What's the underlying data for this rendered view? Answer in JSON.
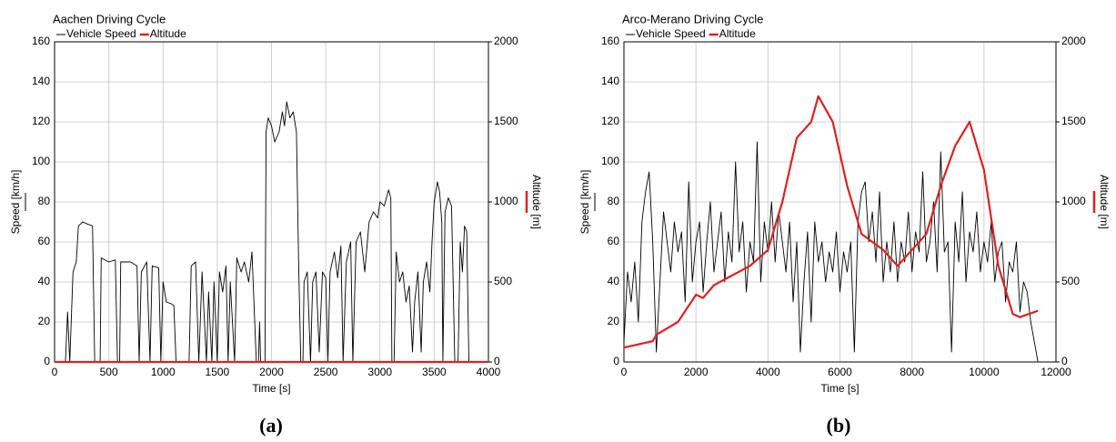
{
  "chart_data": [
    {
      "type": "line",
      "title": "Aachen Driving Cycle",
      "caption": "(a)",
      "xlabel": "Time [s]",
      "ylabel": "Speed [km/h]",
      "y2label": "Altitude [m]",
      "xlim": [
        0,
        4000
      ],
      "xticks": [
        0,
        500,
        1000,
        1500,
        2000,
        2500,
        3000,
        3500,
        4000
      ],
      "ylim": [
        0,
        160
      ],
      "yticks": [
        0,
        20,
        40,
        60,
        80,
        100,
        120,
        140,
        160
      ],
      "y2lim": [
        0,
        2000
      ],
      "y2ticks": [
        0,
        500,
        1000,
        1500,
        2000
      ],
      "grid": true,
      "series": [
        {
          "name": "Vehicle Speed",
          "color": "#000000",
          "x": [
            0,
            100,
            120,
            140,
            170,
            200,
            220,
            260,
            300,
            350,
            370,
            420,
            430,
            500,
            560,
            580,
            600,
            610,
            700,
            760,
            780,
            800,
            850,
            880,
            900,
            960,
            980,
            1000,
            1030,
            1080,
            1100,
            1120,
            1240,
            1260,
            1300,
            1330,
            1360,
            1400,
            1420,
            1450,
            1470,
            1500,
            1520,
            1550,
            1580,
            1600,
            1620,
            1660,
            1680,
            1720,
            1750,
            1790,
            1820,
            1860,
            1880,
            1890,
            1900,
            1940,
            1950,
            1970,
            2000,
            2030,
            2070,
            2100,
            2120,
            2140,
            2170,
            2200,
            2230,
            2250,
            2270,
            2290,
            2300,
            2330,
            2360,
            2380,
            2410,
            2440,
            2470,
            2500,
            2520,
            2540,
            2580,
            2610,
            2640,
            2660,
            2690,
            2730,
            2750,
            2780,
            2820,
            2860,
            2900,
            2940,
            2980,
            3000,
            3040,
            3080,
            3100,
            3110,
            3130,
            3150,
            3180,
            3210,
            3240,
            3270,
            3300,
            3320,
            3350,
            3380,
            3400,
            3430,
            3460,
            3480,
            3500,
            3530,
            3550,
            3570,
            3580,
            3600,
            3630,
            3660,
            3690,
            3720,
            3740,
            3760,
            3780,
            3800,
            3820,
            4000
          ],
          "values": [
            0,
            0,
            25,
            0,
            45,
            50,
            68,
            70,
            69,
            68,
            0,
            0,
            52,
            50,
            51,
            0,
            0,
            50,
            50,
            48,
            0,
            45,
            50,
            0,
            48,
            47,
            0,
            40,
            30,
            29,
            28,
            0,
            0,
            48,
            50,
            0,
            45,
            0,
            35,
            0,
            40,
            0,
            45,
            35,
            48,
            0,
            40,
            0,
            52,
            45,
            50,
            40,
            55,
            0,
            0,
            20,
            0,
            0,
            115,
            122,
            118,
            110,
            115,
            125,
            118,
            130,
            122,
            125,
            115,
            50,
            0,
            0,
            40,
            45,
            0,
            40,
            45,
            5,
            45,
            42,
            0,
            45,
            55,
            42,
            58,
            0,
            50,
            60,
            0,
            60,
            65,
            45,
            70,
            75,
            72,
            80,
            78,
            86,
            82,
            0,
            0,
            55,
            40,
            45,
            30,
            38,
            5,
            30,
            45,
            5,
            40,
            50,
            35,
            60,
            80,
            90,
            85,
            70,
            0,
            75,
            82,
            78,
            0,
            0,
            60,
            45,
            68,
            65,
            0,
            0
          ]
        },
        {
          "name": "Altitude",
          "color": "#e02020",
          "axis": "y2",
          "x": [
            0,
            4000
          ],
          "values": [
            0,
            0
          ]
        }
      ]
    },
    {
      "type": "line",
      "title": "Arco-Merano Driving Cycle",
      "caption": "(b)",
      "xlabel": "Time [s]",
      "ylabel": "Speed [km/h]",
      "y2label": "Altitude [m]",
      "xlim": [
        0,
        12000
      ],
      "xticks": [
        0,
        2000,
        4000,
        6000,
        8000,
        10000,
        12000
      ],
      "ylim": [
        0,
        160
      ],
      "yticks": [
        0,
        20,
        40,
        60,
        80,
        100,
        120,
        140,
        160
      ],
      "y2lim": [
        0,
        2000
      ],
      "y2ticks": [
        0,
        500,
        1000,
        1500,
        2000
      ],
      "grid": true,
      "series": [
        {
          "name": "Vehicle Speed",
          "color": "#000000",
          "x": [
            0,
            100,
            200,
            300,
            400,
            500,
            600,
            700,
            800,
            900,
            1000,
            1100,
            1200,
            1300,
            1400,
            1500,
            1600,
            1700,
            1800,
            1900,
            2000,
            2100,
            2200,
            2300,
            2400,
            2500,
            2600,
            2700,
            2800,
            2900,
            3000,
            3100,
            3200,
            3300,
            3400,
            3500,
            3600,
            3700,
            3800,
            3900,
            4000,
            4100,
            4200,
            4300,
            4400,
            4500,
            4600,
            4700,
            4800,
            4900,
            5000,
            5100,
            5200,
            5300,
            5400,
            5500,
            5600,
            5700,
            5800,
            5900,
            6000,
            6100,
            6200,
            6300,
            6400,
            6500,
            6600,
            6700,
            6800,
            6900,
            7000,
            7100,
            7200,
            7300,
            7400,
            7500,
            7600,
            7700,
            7800,
            7900,
            8000,
            8100,
            8200,
            8300,
            8400,
            8500,
            8600,
            8700,
            8800,
            8900,
            9000,
            9100,
            9200,
            9300,
            9400,
            9500,
            9600,
            9700,
            9800,
            9900,
            10000,
            10100,
            10200,
            10300,
            10400,
            10500,
            10600,
            10700,
            10800,
            10900,
            11000,
            11100,
            11200,
            11300,
            11400,
            11500
          ],
          "values": [
            10,
            45,
            30,
            50,
            20,
            70,
            85,
            95,
            60,
            5,
            40,
            75,
            60,
            45,
            70,
            55,
            65,
            30,
            90,
            40,
            60,
            70,
            35,
            60,
            80,
            45,
            60,
            75,
            40,
            65,
            50,
            100,
            55,
            70,
            35,
            60,
            50,
            110,
            40,
            70,
            55,
            80,
            50,
            75,
            60,
            45,
            70,
            30,
            60,
            5,
            40,
            65,
            20,
            70,
            50,
            60,
            40,
            55,
            45,
            65,
            35,
            55,
            45,
            60,
            5,
            70,
            85,
            90,
            60,
            75,
            50,
            85,
            40,
            60,
            45,
            70,
            40,
            60,
            50,
            75,
            45,
            65,
            55,
            95,
            50,
            60,
            80,
            45,
            105,
            55,
            60,
            5,
            70,
            50,
            85,
            40,
            65,
            55,
            75,
            45,
            60,
            50,
            70,
            40,
            55,
            60,
            30,
            50,
            45,
            60,
            25,
            40,
            35,
            20,
            10,
            0
          ]
        },
        {
          "name": "Altitude",
          "color": "#e02020",
          "axis": "y2",
          "x": [
            0,
            800,
            900,
            1500,
            2000,
            2200,
            2500,
            3500,
            4000,
            4400,
            4800,
            5200,
            5400,
            5800,
            6200,
            6600,
            7200,
            7600,
            8000,
            8400,
            8800,
            9200,
            9600,
            10000,
            10400,
            10800,
            11000,
            11500
          ],
          "values": [
            90,
            130,
            170,
            250,
            420,
            400,
            480,
            600,
            700,
            1000,
            1400,
            1500,
            1660,
            1500,
            1100,
            800,
            700,
            600,
            700,
            800,
            1100,
            1350,
            1500,
            1200,
            600,
            300,
            280,
            320
          ]
        }
      ]
    }
  ]
}
